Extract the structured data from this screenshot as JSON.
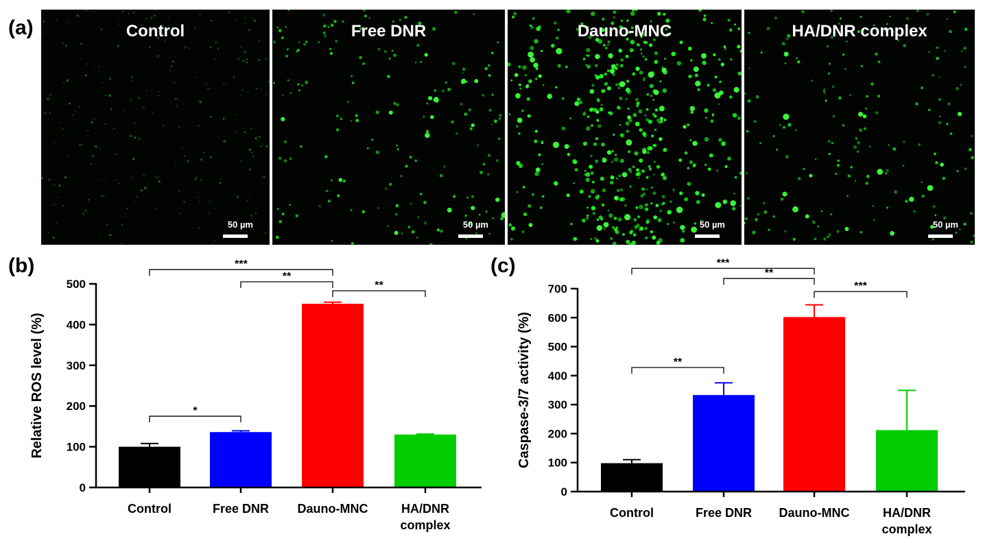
{
  "panel_a": {
    "letter": "(a)",
    "images": [
      {
        "title": "Control",
        "scale_label": "50 µm",
        "intensity": "low"
      },
      {
        "title": "Free DNR",
        "scale_label": "50 µm",
        "intensity": "medium"
      },
      {
        "title": "Dauno-MNC",
        "scale_label": "50 µm",
        "intensity": "high"
      },
      {
        "title": "HA/DNR complex",
        "scale_label": "50 µm",
        "intensity": "medium"
      }
    ]
  },
  "chart_data": [
    {
      "panel": "(b)",
      "type": "bar",
      "categories": [
        "Control",
        "Free DNR",
        "Dauno-MNC",
        "HA/DNR complex"
      ],
      "category_lines": [
        [
          "Control"
        ],
        [
          "Free DNR"
        ],
        [
          "Dauno-MNC"
        ],
        [
          "HA/DNR",
          "complex"
        ]
      ],
      "values": [
        100,
        136,
        451,
        130
      ],
      "errors": [
        8,
        3,
        4,
        1
      ],
      "colors": [
        "#000000",
        "#0000ff",
        "#ff0000",
        "#00cc00"
      ],
      "ylabel": "Relative ROS level (%)",
      "xlabel": "",
      "ylim": [
        0,
        500
      ],
      "yticks": [
        0,
        100,
        200,
        300,
        400,
        500
      ],
      "significance": [
        {
          "from": 0,
          "to": 2,
          "label": "***",
          "y": 535
        },
        {
          "from": 1,
          "to": 2,
          "label": "**",
          "y": 505
        },
        {
          "from": 2,
          "to": 3,
          "label": "**",
          "y": 483
        },
        {
          "from": 0,
          "to": 1,
          "label": "*",
          "y": 175
        }
      ]
    },
    {
      "panel": "(c)",
      "type": "bar",
      "categories": [
        "Control",
        "Free DNR",
        "Dauno-MNC",
        "HA/DNR complex"
      ],
      "category_lines": [
        [
          "Control"
        ],
        [
          "Free DNR"
        ],
        [
          "Dauno-MNC"
        ],
        [
          "HA/DNR",
          "complex"
        ]
      ],
      "values": [
        98,
        333,
        602,
        212
      ],
      "errors": [
        12,
        42,
        42,
        137
      ],
      "colors": [
        "#000000",
        "#0000ff",
        "#ff0000",
        "#00cc00"
      ],
      "ylabel": "Caspase-3/7 activity (%)",
      "xlabel": "",
      "ylim": [
        0,
        700
      ],
      "yticks": [
        0,
        100,
        200,
        300,
        400,
        500,
        600,
        700
      ],
      "significance": [
        {
          "from": 0,
          "to": 2,
          "label": "***",
          "y": 770
        },
        {
          "from": 1,
          "to": 2,
          "label": "**",
          "y": 735
        },
        {
          "from": 2,
          "to": 3,
          "label": "***",
          "y": 690
        },
        {
          "from": 0,
          "to": 1,
          "label": "**",
          "y": 428
        }
      ]
    }
  ]
}
